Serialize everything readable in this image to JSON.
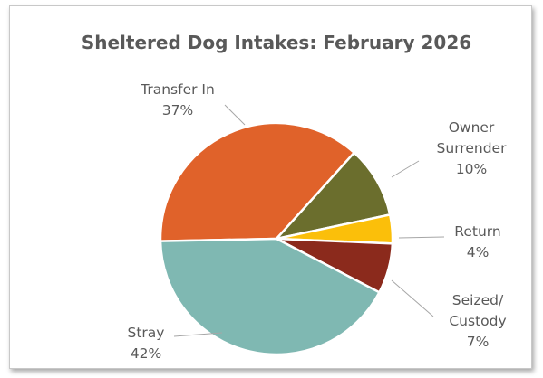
{
  "chart_data": {
    "type": "pie",
    "title": "Sheltered Dog Intakes: February 2026",
    "categories": [
      "Transfer In",
      "Owner Surrender",
      "Return",
      "Seized/ Custody",
      "Stray"
    ],
    "values": [
      37,
      10,
      4,
      7,
      42
    ],
    "value_labels": [
      "37%",
      "10%",
      "4%",
      "7%",
      "42%"
    ],
    "colors": [
      "#e0622a",
      "#6b6e2d",
      "#fbbf0a",
      "#8b2a1c",
      "#7fb8b2"
    ]
  }
}
